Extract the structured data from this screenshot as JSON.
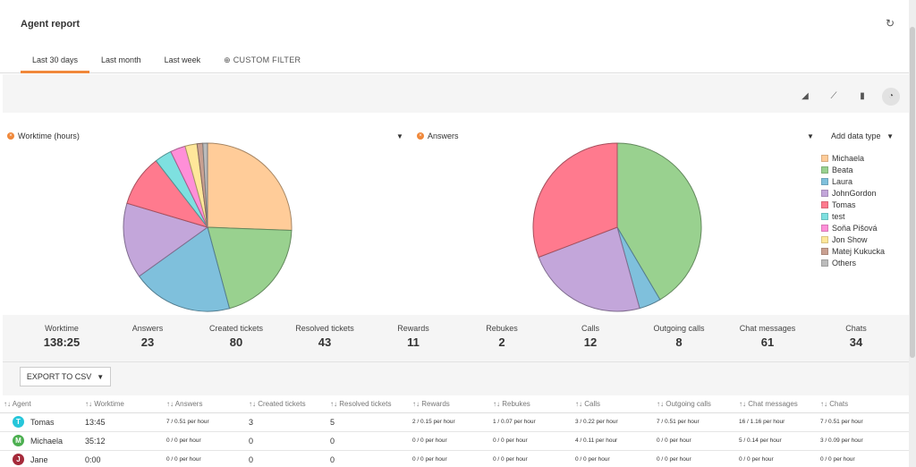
{
  "header": {
    "title": "Agent report",
    "tabs": [
      {
        "label": "Last 30 days",
        "active": true
      },
      {
        "label": "Last month",
        "active": false
      },
      {
        "label": "Last week",
        "active": false
      },
      {
        "label": "⊕ CUSTOM FILTER",
        "active": false
      }
    ]
  },
  "toolbar": {
    "icons": [
      "area-chart-icon",
      "line-chart-icon",
      "bar-chart-icon",
      "pie-chart-icon"
    ],
    "selected": "pie-chart-icon"
  },
  "chart_data": [
    {
      "type": "pie",
      "title": "Worktime (hours)",
      "categories": [
        "Michaela",
        "Beata",
        "Laura",
        "JohnGordon",
        "Tomas",
        "test",
        "Soňa Pišová",
        "Jon Show",
        "Matej Kukucka",
        "Others"
      ],
      "values": [
        25.6,
        20.2,
        19.3,
        14.5,
        9.9,
        3.3,
        2.9,
        2.3,
        1.1,
        0.9
      ],
      "colors": [
        "#ffcc99",
        "#99d18f",
        "#7fc0dc",
        "#c3a6da",
        "#ff7a8e",
        "#7ee0e0",
        "#ff8fd8",
        "#ffe79a",
        "#c9a091",
        "#bbbbbb"
      ]
    },
    {
      "type": "pie",
      "title": "Answers",
      "categories": [
        "Beata",
        "Laura",
        "JohnGordon",
        "Tomas"
      ],
      "values": [
        41.5,
        4.2,
        23.5,
        30.8
      ],
      "colors": [
        "#99d18f",
        "#7fc0dc",
        "#c3a6da",
        "#ff7a8e"
      ]
    }
  ],
  "selectors": {
    "left": "Worktime (hours)",
    "right": "Answers",
    "add_data_type": "Add data type"
  },
  "legend": [
    {
      "label": "Michaela",
      "color": "#ffcc99"
    },
    {
      "label": "Beata",
      "color": "#99d18f"
    },
    {
      "label": "Laura",
      "color": "#7fc0dc"
    },
    {
      "label": "JohnGordon",
      "color": "#c3a6da"
    },
    {
      "label": "Tomas",
      "color": "#ff7a8e"
    },
    {
      "label": "test",
      "color": "#7ee0e0"
    },
    {
      "label": "Soňa Pišová",
      "color": "#ff8fd8"
    },
    {
      "label": "Jon Show",
      "color": "#ffe79a"
    },
    {
      "label": "Matej Kukucka",
      "color": "#c9a091"
    },
    {
      "label": "Others",
      "color": "#bbbbbb"
    }
  ],
  "stats": [
    {
      "label": "Worktime",
      "value": "138:25"
    },
    {
      "label": "Answers",
      "value": "23"
    },
    {
      "label": "Created tickets",
      "value": "80"
    },
    {
      "label": "Resolved tickets",
      "value": "43"
    },
    {
      "label": "Rewards",
      "value": "11"
    },
    {
      "label": "Rebukes",
      "value": "2"
    },
    {
      "label": "Calls",
      "value": "12"
    },
    {
      "label": "Outgoing calls",
      "value": "8"
    },
    {
      "label": "Chat messages",
      "value": "61"
    },
    {
      "label": "Chats",
      "value": "34"
    }
  ],
  "export_label": "EXPORT TO CSV",
  "table": {
    "headers": [
      "↑↓ Agent",
      "↑↓ Worktime",
      "↑↓ Answers",
      "↑↓ Created tickets",
      "↑↓ Resolved tickets",
      "↑↓ Rewards",
      "↑↓ Rebukes",
      "↑↓ Calls",
      "↑↓ Outgoing calls",
      "↑↓ Chat messages",
      "↑↓ Chats"
    ],
    "rows": [
      {
        "initial": "T",
        "avatar_color": "#26c6da",
        "name": "Tomas",
        "cells": [
          "13:45",
          "7 / 0.51 per hour",
          "3",
          "5",
          "2 / 0.15 per hour",
          "1 / 0.07 per hour",
          "3 / 0.22 per hour",
          "7 / 0.51 per hour",
          "16 / 1.16 per hour",
          "7 / 0.51 per hour"
        ]
      },
      {
        "initial": "M",
        "avatar_color": "#4caf50",
        "name": "Michaela",
        "cells": [
          "35:12",
          "0 / 0 per hour",
          "0",
          "0",
          "0 / 0 per hour",
          "0 / 0 per hour",
          "4 / 0.11 per hour",
          "0 / 0 per hour",
          "5 / 0.14 per hour",
          "3 / 0.09 per hour"
        ]
      },
      {
        "initial": "J",
        "avatar_color": "#a52a3a",
        "name": "Jane",
        "cells": [
          "0:00",
          "0 / 0 per hour",
          "0",
          "0",
          "0 / 0 per hour",
          "0 / 0 per hour",
          "0 / 0 per hour",
          "0 / 0 per hour",
          "0 / 0 per hour",
          "0 / 0 per hour"
        ]
      }
    ]
  }
}
